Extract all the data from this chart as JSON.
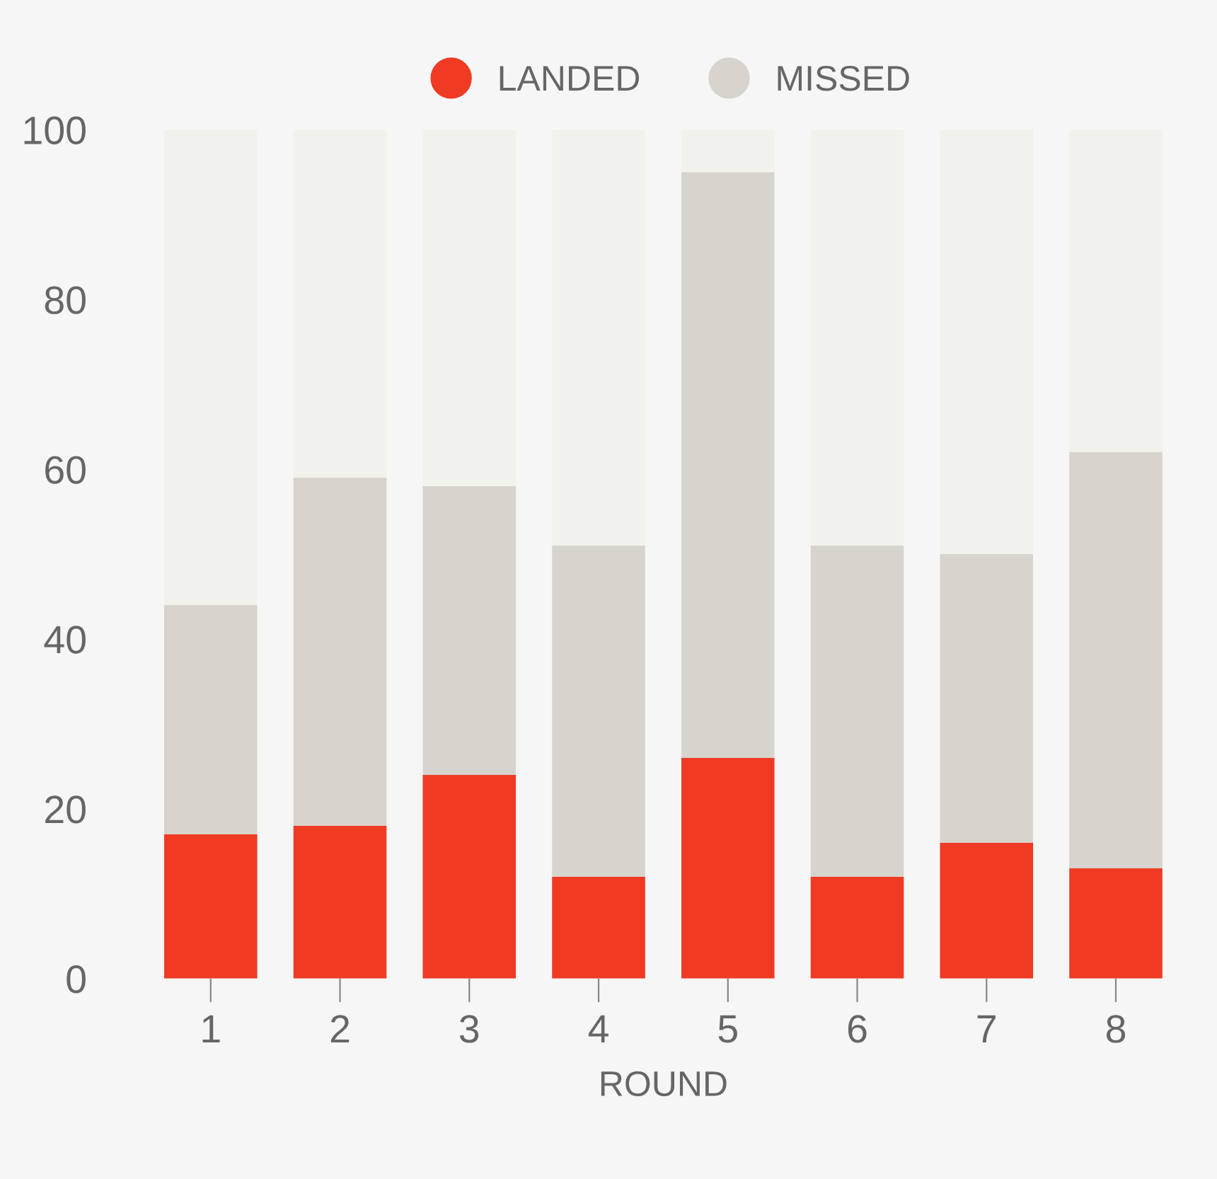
{
  "chart_data": {
    "type": "bar",
    "stacked": true,
    "xlabel": "ROUND",
    "categories": [
      "1",
      "2",
      "3",
      "4",
      "5",
      "6",
      "7",
      "8"
    ],
    "series": [
      {
        "name": "LANDED",
        "color": "#ef3b24",
        "values": [
          17,
          18,
          24,
          12,
          26,
          12,
          16,
          13
        ]
      },
      {
        "name": "MISSED",
        "color": "#d7d4ce",
        "values": [
          27,
          41,
          34,
          39,
          69,
          39,
          34,
          49
        ]
      },
      {
        "color": "#f2f2ec",
        "values": [
          56,
          41,
          42,
          49,
          5,
          49,
          50,
          38
        ]
      }
    ],
    "ylim": [
      0,
      100
    ],
    "yticks": [
      0,
      20,
      40,
      60,
      80,
      100
    ],
    "grid": false,
    "legend": "top"
  }
}
